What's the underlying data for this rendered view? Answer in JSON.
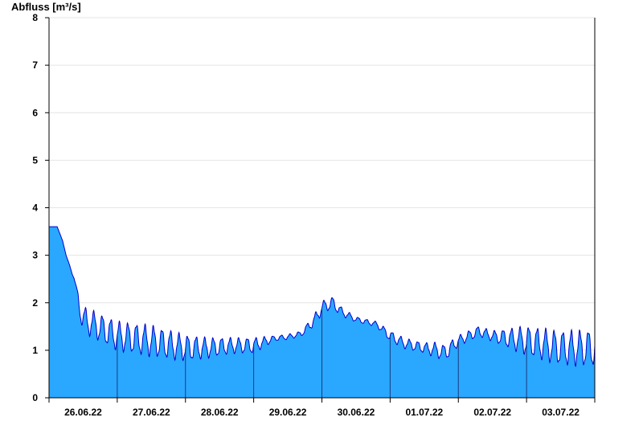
{
  "chart_data": {
    "type": "area",
    "title": "",
    "ylabel": "Abfluss [m³/s]",
    "xlabel": "",
    "ylim": [
      0,
      8
    ],
    "yticks": [
      "0",
      "1",
      "2",
      "3",
      "4",
      "5",
      "6",
      "7",
      "8"
    ],
    "xlim": [
      0,
      8
    ],
    "day_labels": [
      "26.06.22",
      "27.06.22",
      "28.06.22",
      "29.06.22",
      "30.06.22",
      "01.07.22",
      "02.07.22",
      "03.07.22"
    ],
    "grid": true,
    "colors": {
      "fill": "#2aa8ff",
      "line": "#0000cc",
      "grid": "#e4e4e4",
      "axis": "#000000"
    },
    "series": [
      {
        "x": [
          0.0,
          0.12,
          0.2,
          0.25,
          0.3,
          0.34,
          0.37,
          0.4,
          0.43,
          0.46,
          0.5,
          1.0,
          1.5,
          2.0,
          2.3,
          2.7,
          3.0,
          3.3,
          3.5,
          3.7,
          3.9,
          4.0,
          4.15,
          4.3,
          4.5,
          4.8,
          5.0,
          5.2,
          5.5,
          5.7,
          5.78,
          5.85,
          6.0,
          6.3,
          6.5,
          7.0,
          7.5,
          8.0
        ],
        "baseline": [
          3.6,
          3.6,
          3.3,
          3.0,
          2.8,
          2.6,
          2.5,
          2.3,
          2.05,
          1.85,
          1.65,
          1.3,
          1.2,
          1.05,
          1.05,
          1.1,
          1.1,
          1.25,
          1.28,
          1.35,
          1.65,
          1.9,
          2.0,
          1.8,
          1.65,
          1.55,
          1.3,
          1.15,
          1.05,
          1.0,
          0.95,
          1.0,
          1.2,
          1.4,
          1.3,
          1.2,
          1.05,
          1.05
        ],
        "amplitude": [
          0.0,
          0.0,
          0.0,
          0.0,
          0.0,
          0.0,
          0.0,
          0.05,
          0.15,
          0.2,
          0.25,
          0.28,
          0.3,
          0.25,
          0.2,
          0.15,
          0.15,
          0.05,
          0.05,
          0.05,
          0.12,
          0.12,
          0.12,
          0.08,
          0.05,
          0.05,
          0.1,
          0.1,
          0.1,
          0.15,
          0.15,
          0.15,
          0.1,
          0.1,
          0.1,
          0.28,
          0.33,
          0.35
        ],
        "oscillations_per_day": 8
      }
    ]
  }
}
